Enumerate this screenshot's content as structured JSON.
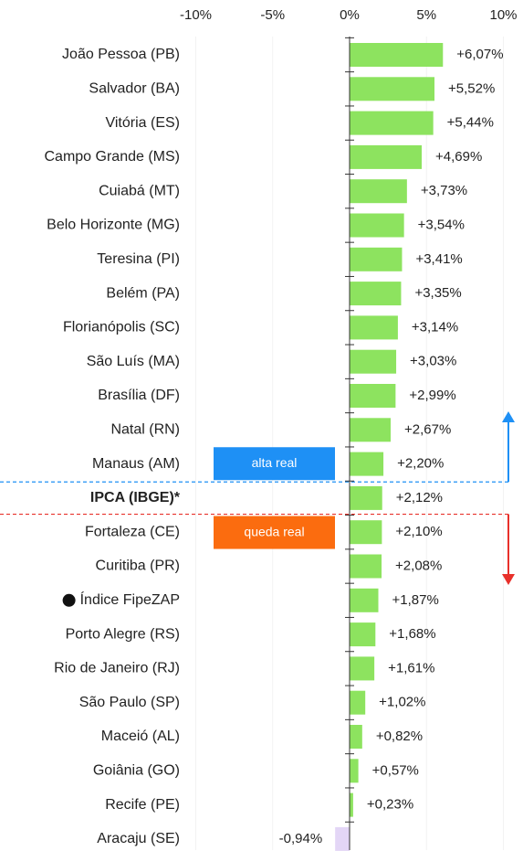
{
  "chart_data": {
    "type": "hbar",
    "categories": [
      "João Pessoa (PB)",
      "Salvador (BA)",
      "Vitória (ES)",
      "Campo Grande (MS)",
      "Cuiabá (MT)",
      "Belo Horizonte (MG)",
      "Teresina (PI)",
      "Belém (PA)",
      "Florianópolis (SC)",
      "São Luís (MA)",
      "Brasília (DF)",
      "Natal (RN)",
      "Manaus (AM)",
      "IPCA (IBGE)*",
      "Fortaleza (CE)",
      "Curitiba (PR)",
      "Índice FipeZAP",
      "Porto Alegre (RS)",
      "Rio de Janeiro (RJ)",
      "São Paulo (SP)",
      "Maceió (AL)",
      "Goiânia (GO)",
      "Recife (PE)",
      "Aracaju (SE)"
    ],
    "values": [
      6.07,
      5.52,
      5.44,
      4.69,
      3.73,
      3.54,
      3.41,
      3.35,
      3.14,
      3.03,
      2.99,
      2.67,
      2.2,
      2.12,
      2.1,
      2.08,
      1.87,
      1.68,
      1.61,
      1.02,
      0.82,
      0.57,
      0.23,
      -0.94
    ],
    "value_labels": [
      "+6,07%",
      "+5,52%",
      "+5,44%",
      "+4,69%",
      "+3,73%",
      "+3,54%",
      "+3,41%",
      "+3,35%",
      "+3,14%",
      "+3,03%",
      "+2,99%",
      "+2,67%",
      "+2,20%",
      "+2,12%",
      "+2,10%",
      "+2,08%",
      "+1,87%",
      "+1,68%",
      "+1,61%",
      "+1,02%",
      "+0,82%",
      "+0,57%",
      "+0,23%",
      "-0,94%"
    ],
    "color": "#8de35f",
    "negative_color": "#e3d6f6",
    "bold_category": 13,
    "xlim": [
      -10,
      10
    ],
    "xticks": [
      {
        "value": -10,
        "label": "-10%"
      },
      {
        "value": -5,
        "label": "-5%"
      },
      {
        "value": 0,
        "label": "0%"
      },
      {
        "value": 5,
        "label": "5%"
      },
      {
        "value": 10,
        "label": "10%"
      }
    ],
    "grid": true,
    "annotations": [
      {
        "text": "alta real",
        "color": "#1e90f5"
      },
      {
        "text": "queda real",
        "color": "#fb6c0f"
      }
    ]
  }
}
